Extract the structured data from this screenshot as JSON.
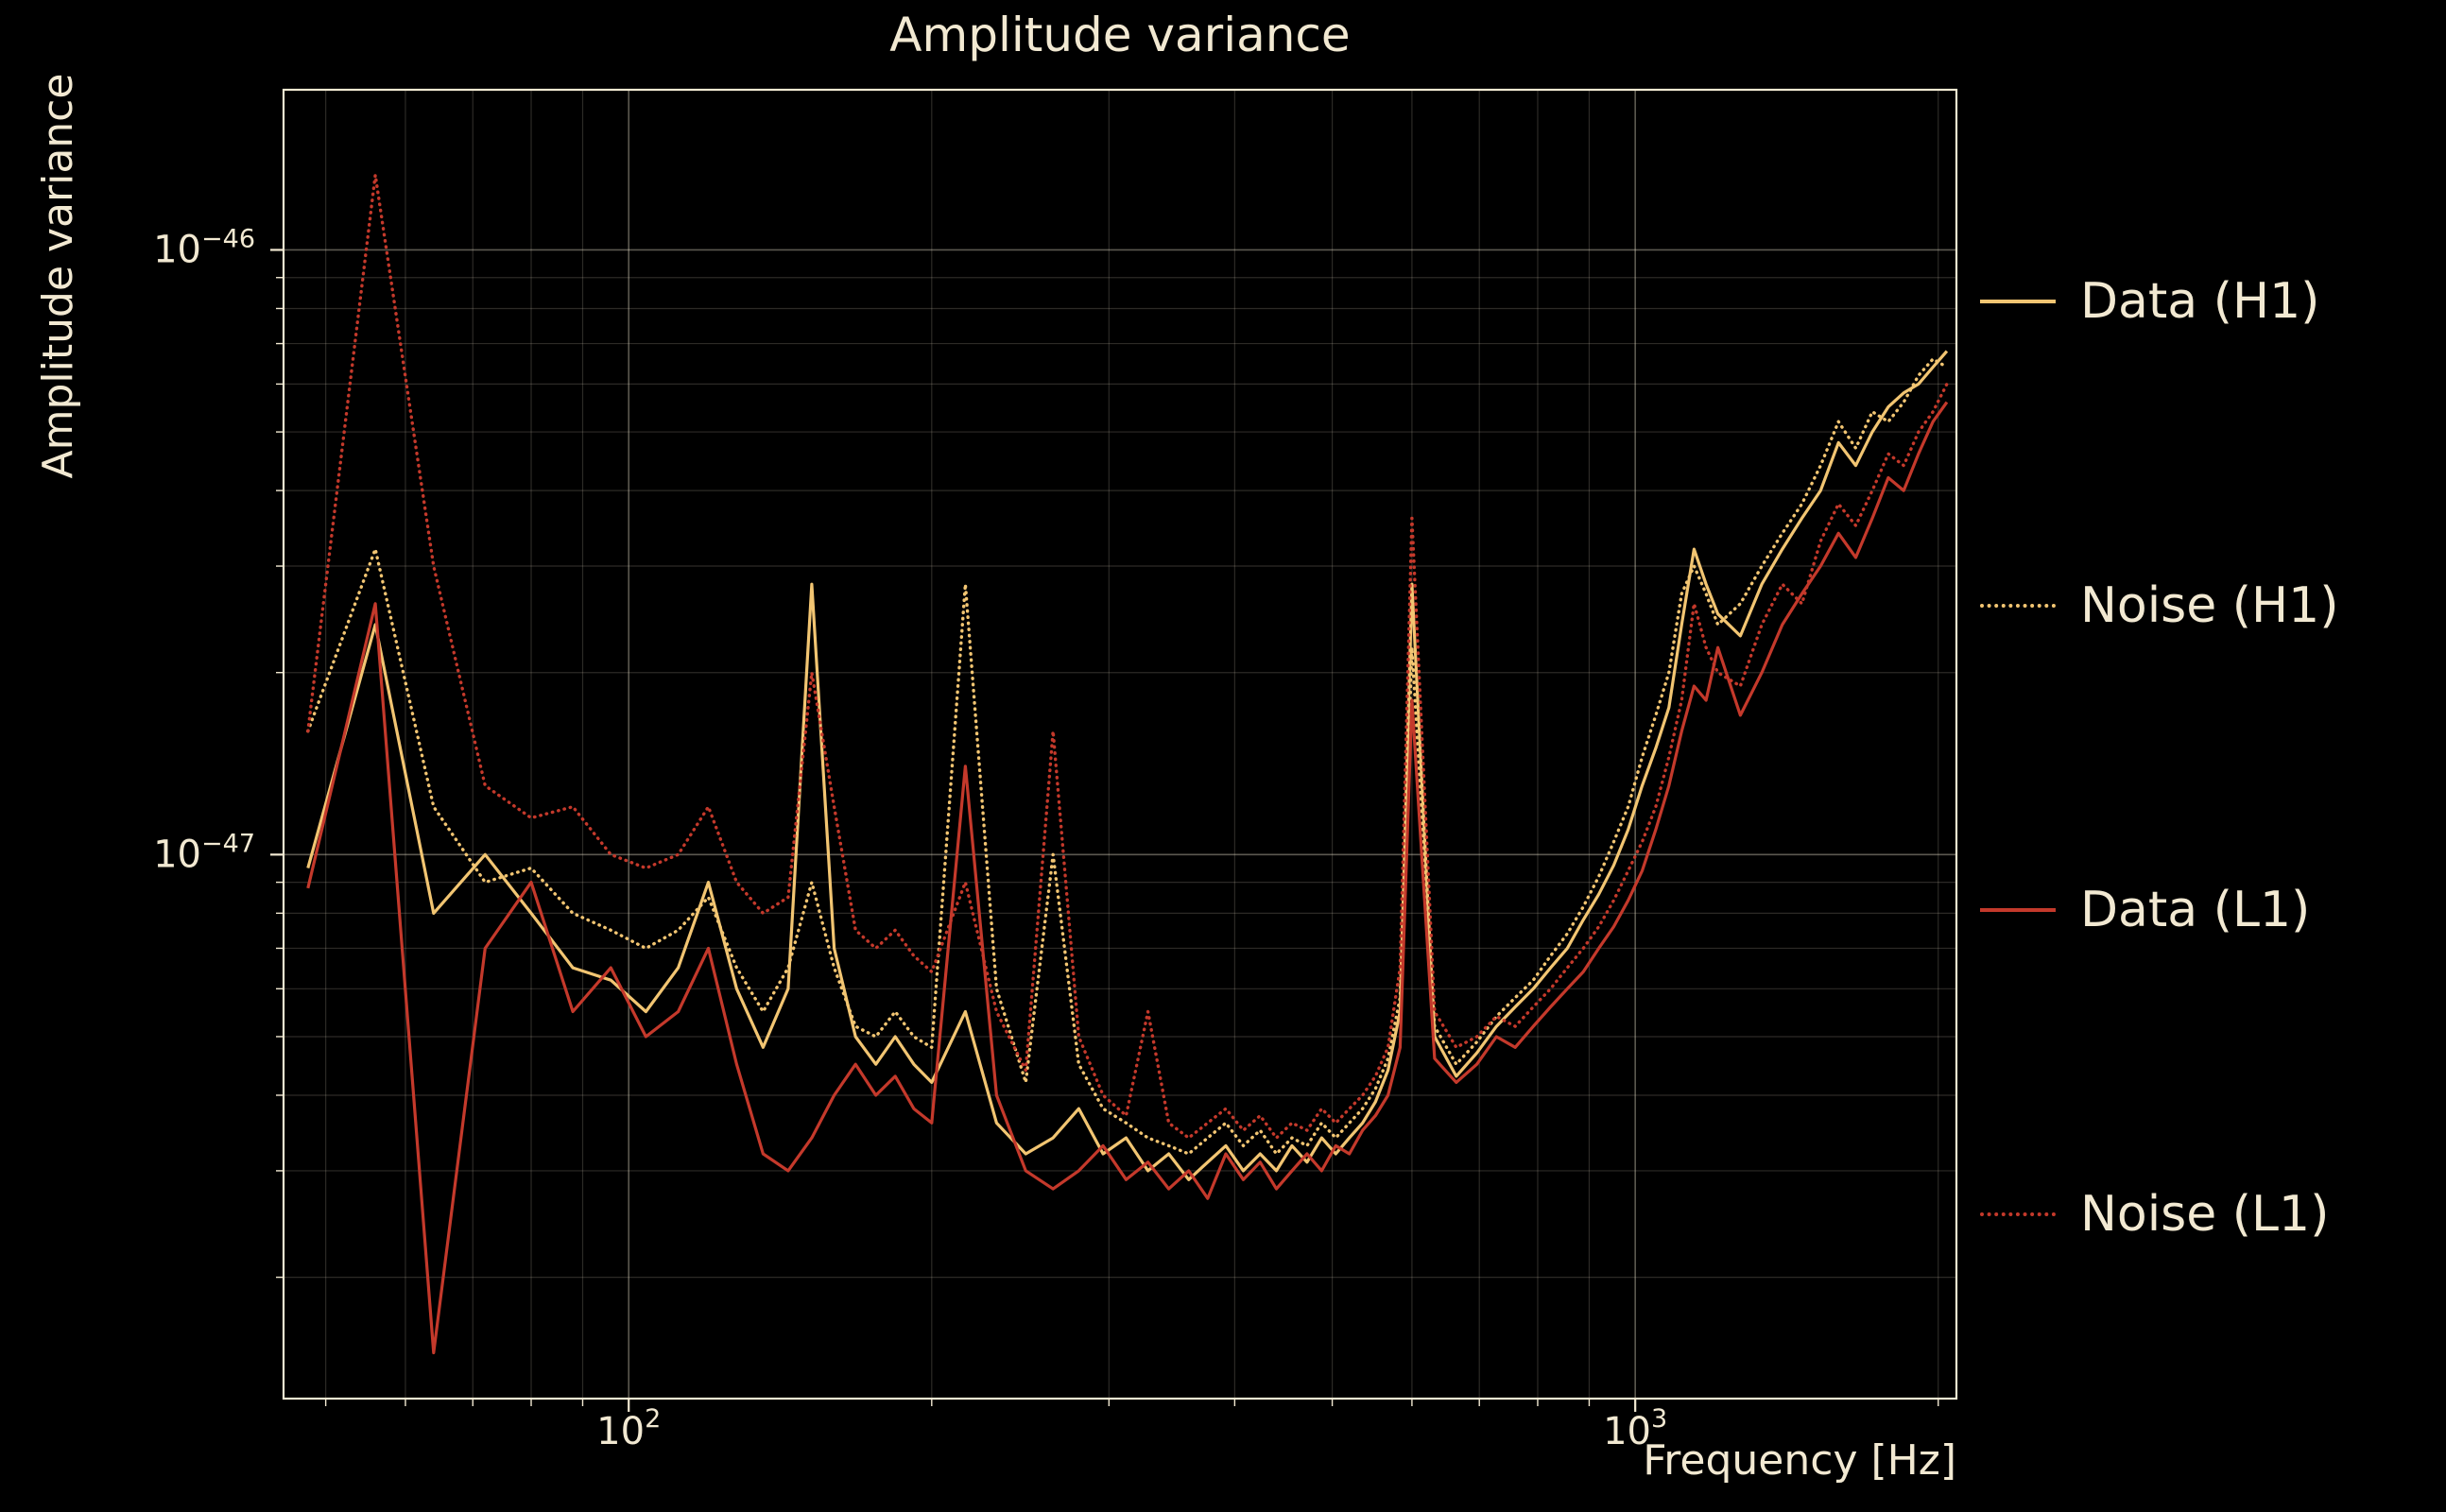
{
  "colors": {
    "background": "#000000",
    "text": "#f2e9d2",
    "grid_major": "rgba(242,233,210,0.38)",
    "grid_minor": "rgba(242,233,210,0.18)",
    "h1": "#f2c572",
    "l1": "#c4392b"
  },
  "chart_data": {
    "type": "line",
    "title": "Amplitude variance",
    "xlabel": "Frequency [Hz]",
    "ylabel": "Amplitude variance",
    "x_scale": "log",
    "y_scale": "log",
    "grid": true,
    "legend_position": "right of plot",
    "xlim": [
      45.4,
      2085
    ],
    "ylim": [
      1.26e-48,
      1.84e-46
    ],
    "x_major_ticks": [
      {
        "value": 100,
        "base": "10",
        "exp": "2"
      },
      {
        "value": 1000,
        "base": "10",
        "exp": "3"
      }
    ],
    "y_major_ticks": [
      {
        "value": 1e-46,
        "base": "10",
        "exp": "−46"
      },
      {
        "value": 1e-47,
        "base": "10",
        "exp": "−47"
      }
    ],
    "x_minor_ticks": [
      50,
      60,
      70,
      80,
      90,
      200,
      300,
      400,
      500,
      600,
      700,
      800,
      900,
      2000
    ],
    "y_minor_ticks": [
      2e-48,
      3e-48,
      4e-48,
      5e-48,
      6e-48,
      7e-48,
      8e-48,
      9e-48,
      2e-47,
      3e-47,
      4e-47,
      5e-47,
      6e-47,
      7e-47,
      8e-47,
      9e-47
    ],
    "frequencies_hz": [
      48,
      56,
      64,
      72,
      80,
      88,
      96,
      104,
      112,
      120,
      128,
      136,
      144,
      152,
      160,
      168,
      176,
      184,
      192,
      200,
      216,
      232,
      248,
      264,
      280,
      296,
      312,
      328,
      344,
      360,
      376,
      392,
      408,
      424,
      440,
      456,
      472,
      488,
      504,
      520,
      536,
      552,
      568,
      584,
      600,
      632,
      664,
      696,
      728,
      760,
      792,
      824,
      856,
      888,
      920,
      952,
      984,
      1016,
      1048,
      1080,
      1112,
      1144,
      1176,
      1208,
      1272,
      1336,
      1400,
      1464,
      1528,
      1592,
      1656,
      1720,
      1784,
      1848,
      1912,
      1976,
      2040
    ],
    "series": [
      {
        "id": "data-h1",
        "name": "Data (H1)",
        "color": "#f2c572",
        "line_style": "solid",
        "values": [
          9.5e-48,
          2.4e-47,
          8e-48,
          1e-47,
          8e-48,
          6.5e-48,
          6.2e-48,
          5.5e-48,
          6.5e-48,
          9e-48,
          6e-48,
          4.8e-48,
          6e-48,
          2.8e-47,
          7e-48,
          5e-48,
          4.5e-48,
          5e-48,
          4.5e-48,
          4.2e-48,
          5.5e-48,
          3.6e-48,
          3.2e-48,
          3.4e-48,
          3.8e-48,
          3.2e-48,
          3.4e-48,
          3e-48,
          3.2e-48,
          2.9e-48,
          3.1e-48,
          3.3e-48,
          3e-48,
          3.2e-48,
          3e-48,
          3.3e-48,
          3.1e-48,
          3.4e-48,
          3.2e-48,
          3.4e-48,
          3.6e-48,
          3.9e-48,
          4.4e-48,
          5.5e-48,
          2.8e-47,
          5e-48,
          4.3e-48,
          4.7e-48,
          5.2e-48,
          5.6e-48,
          6e-48,
          6.5e-48,
          7e-48,
          7.8e-48,
          8.6e-48,
          9.6e-48,
          1.1e-47,
          1.3e-47,
          1.5e-47,
          1.75e-47,
          2.4e-47,
          3.2e-47,
          2.8e-47,
          2.5e-47,
          2.3e-47,
          2.8e-47,
          3.2e-47,
          3.6e-47,
          4e-47,
          4.8e-47,
          4.4e-47,
          5e-47,
          5.5e-47,
          5.8e-47,
          6e-47,
          6.4e-47,
          6.8e-47
        ]
      },
      {
        "id": "noise-h1",
        "name": "Noise (H1)",
        "color": "#f2c572",
        "line_style": "dotted",
        "values": [
          1.6e-47,
          3.2e-47,
          1.2e-47,
          9e-48,
          9.5e-48,
          8e-48,
          7.5e-48,
          7e-48,
          7.5e-48,
          8.5e-48,
          6.5e-48,
          5.5e-48,
          6.5e-48,
          9e-48,
          6.5e-48,
          5.2e-48,
          5e-48,
          5.5e-48,
          5e-48,
          4.8e-48,
          2.8e-47,
          6e-48,
          4.2e-48,
          1e-47,
          4.5e-48,
          3.8e-48,
          3.6e-48,
          3.4e-48,
          3.3e-48,
          3.2e-48,
          3.4e-48,
          3.6e-48,
          3.3e-48,
          3.5e-48,
          3.2e-48,
          3.4e-48,
          3.3e-48,
          3.6e-48,
          3.4e-48,
          3.6e-48,
          3.8e-48,
          4.1e-48,
          4.6e-48,
          5.8e-48,
          2.2e-47,
          5.2e-48,
          4.5e-48,
          4.9e-48,
          5.4e-48,
          5.8e-48,
          6.2e-48,
          6.8e-48,
          7.4e-48,
          8.2e-48,
          9.2e-48,
          1.05e-47,
          1.2e-47,
          1.45e-47,
          1.7e-47,
          2e-47,
          2.7e-47,
          3e-47,
          2.7e-47,
          2.4e-47,
          2.6e-47,
          3e-47,
          3.4e-47,
          3.8e-47,
          4.4e-47,
          5.2e-47,
          4.7e-47,
          5.4e-47,
          5.2e-47,
          5.6e-47,
          6.2e-47,
          6.6e-47,
          6.4e-47
        ]
      },
      {
        "id": "data-l1",
        "name": "Data (L1)",
        "color": "#c4392b",
        "line_style": "solid",
        "values": [
          8.8e-48,
          2.6e-47,
          1.5e-48,
          7e-48,
          9e-48,
          5.5e-48,
          6.5e-48,
          5e-48,
          5.5e-48,
          7e-48,
          4.5e-48,
          3.2e-48,
          3e-48,
          3.4e-48,
          4e-48,
          4.5e-48,
          4e-48,
          4.3e-48,
          3.8e-48,
          3.6e-48,
          1.4e-47,
          4e-48,
          3e-48,
          2.8e-48,
          3e-48,
          3.3e-48,
          2.9e-48,
          3.1e-48,
          2.8e-48,
          3e-48,
          2.7e-48,
          3.2e-48,
          2.9e-48,
          3.1e-48,
          2.8e-48,
          3e-48,
          3.2e-48,
          3e-48,
          3.3e-48,
          3.2e-48,
          3.5e-48,
          3.7e-48,
          4e-48,
          4.8e-48,
          1.8e-47,
          4.6e-48,
          4.2e-48,
          4.5e-48,
          5e-48,
          4.8e-48,
          5.2e-48,
          5.6e-48,
          6e-48,
          6.4e-48,
          7e-48,
          7.6e-48,
          8.4e-48,
          9.4e-48,
          1.1e-47,
          1.3e-47,
          1.6e-47,
          1.9e-47,
          1.8e-47,
          2.2e-47,
          1.7e-47,
          2e-47,
          2.4e-47,
          2.7e-47,
          3e-47,
          3.4e-47,
          3.1e-47,
          3.6e-47,
          4.2e-47,
          4e-47,
          4.6e-47,
          5.2e-47,
          5.6e-47
        ]
      },
      {
        "id": "noise-l1",
        "name": "Noise (L1)",
        "color": "#c4392b",
        "line_style": "dotted",
        "values": [
          1.6e-47,
          1.33e-46,
          3e-47,
          1.3e-47,
          1.15e-47,
          1.2e-47,
          1e-47,
          9.5e-48,
          1e-47,
          1.2e-47,
          9e-48,
          8e-48,
          8.5e-48,
          2e-47,
          1.2e-47,
          7.5e-48,
          7e-48,
          7.5e-48,
          6.8e-48,
          6.4e-48,
          9e-48,
          5.5e-48,
          4.4e-48,
          1.6e-47,
          5e-48,
          4e-48,
          3.7e-48,
          5.5e-48,
          3.6e-48,
          3.4e-48,
          3.6e-48,
          3.8e-48,
          3.5e-48,
          3.7e-48,
          3.4e-48,
          3.6e-48,
          3.5e-48,
          3.8e-48,
          3.6e-48,
          3.8e-48,
          4e-48,
          4.3e-48,
          4.8e-48,
          6.5e-48,
          3.6e-47,
          5.5e-48,
          4.8e-48,
          5e-48,
          5.4e-48,
          5.2e-48,
          5.6e-48,
          6e-48,
          6.5e-48,
          7e-48,
          7.6e-48,
          8.4e-48,
          9.4e-48,
          1.05e-47,
          1.2e-47,
          1.45e-47,
          1.8e-47,
          2.6e-47,
          2.2e-47,
          2e-47,
          1.9e-47,
          2.4e-47,
          2.8e-47,
          2.6e-47,
          3.3e-47,
          3.8e-47,
          3.5e-47,
          4e-47,
          4.6e-47,
          4.4e-47,
          5e-47,
          5.4e-47,
          6e-47
        ]
      }
    ]
  }
}
